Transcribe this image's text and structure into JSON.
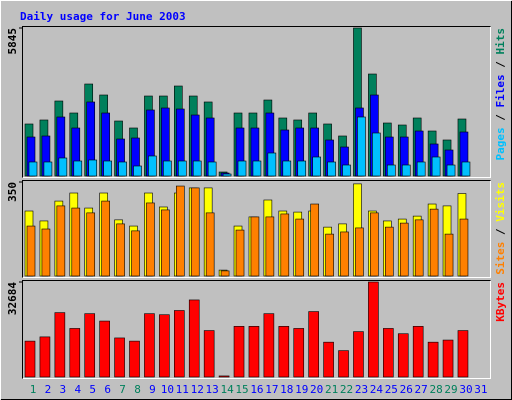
{
  "chart_data": [
    {
      "type": "bar",
      "title": "Daily usage for June 2003",
      "legend_separator": "/",
      "ylim": [
        0,
        5845
      ],
      "yticks": [
        5845
      ],
      "series": [
        {
          "name": "Pages",
          "color": "#00c0ff",
          "values": [
            553,
            553,
            711,
            592,
            632,
            592,
            553,
            395,
            790,
            592,
            592,
            592,
            553,
            79,
            592,
            592,
            908,
            592,
            592,
            750,
            553,
            434,
            2330,
            1698,
            434,
            434,
            553,
            750,
            434,
            553,
            null
          ]
        },
        {
          "name": "Files",
          "color": "#0000ff",
          "values": [
            1540,
            1580,
            2330,
            1896,
            2923,
            2488,
            1461,
            1501,
            2607,
            2686,
            2646,
            2409,
            2291,
            118,
            1896,
            1896,
            2488,
            1817,
            1896,
            1896,
            1422,
            1145,
            2686,
            3199,
            1540,
            1540,
            1777,
            1264,
            1027,
            1738,
            null
          ]
        },
        {
          "name": "Hits",
          "color": "#00805c",
          "values": [
            2054,
            2212,
            2962,
            2488,
            3633,
            3199,
            2172,
            1896,
            3159,
            3159,
            3554,
            3159,
            2923,
            158,
            2488,
            2488,
            3001,
            2291,
            2212,
            2488,
            2054,
            1580,
            5845,
            4028,
            2093,
            2014,
            2291,
            1777,
            1422,
            2251,
            null
          ]
        }
      ]
    },
    {
      "type": "bar",
      "legend_separator": "/",
      "ylim": [
        0,
        350
      ],
      "yticks": [
        350
      ],
      "series": [
        {
          "name": "Sites",
          "color": "#ff8000",
          "values": [
            186,
            175,
            261,
            253,
            235,
            279,
            194,
            168,
            272,
            246,
            335,
            328,
            235,
            19,
            171,
            220,
            220,
            231,
            212,
            268,
            156,
            164,
            179,
            235,
            182,
            197,
            209,
            249,
            156,
            212,
            null
          ]
        },
        {
          "name": "Visits",
          "color": "#ffff00",
          "values": [
            242,
            205,
            279,
            309,
            253,
            309,
            209,
            186,
            309,
            257,
            309,
            328,
            328,
            22,
            186,
            220,
            283,
            242,
            238,
            242,
            182,
            194,
            343,
            242,
            205,
            212,
            223,
            268,
            261,
            307,
            null
          ]
        }
      ]
    },
    {
      "type": "bar",
      "ylim": [
        0,
        32684
      ],
      "yticks": [
        32684
      ],
      "categories": [
        "1",
        "2",
        "3",
        "4",
        "5",
        "6",
        "7",
        "8",
        "9",
        "10",
        "11",
        "12",
        "13",
        "14",
        "15",
        "16",
        "17",
        "18",
        "19",
        "20",
        "21",
        "22",
        "23",
        "24",
        "25",
        "26",
        "27",
        "28",
        "29",
        "30",
        "31"
      ],
      "category_colors": [
        "#00805c",
        "#0000ff",
        "#0000ff",
        "#0000ff",
        "#0000ff",
        "#0000ff",
        "#00805c",
        "#00805c",
        "#0000ff",
        "#0000ff",
        "#0000ff",
        "#0000ff",
        "#0000ff",
        "#00805c",
        "#00805c",
        "#0000ff",
        "#0000ff",
        "#0000ff",
        "#0000ff",
        "#0000ff",
        "#00805c",
        "#00805c",
        "#0000ff",
        "#0000ff",
        "#0000ff",
        "#0000ff",
        "#0000ff",
        "#00805c",
        "#00805c",
        "#0000ff",
        "#0000ff"
      ],
      "series": [
        {
          "name": "KBytes",
          "color": "#ff0000",
          "values": [
            12347,
            13800,
            22152,
            16705,
            21790,
            19247,
            13436,
            12347,
            21790,
            21427,
            22879,
            26510,
            15979,
            363,
            17431,
            17431,
            21790,
            17431,
            16705,
            22515,
            11984,
            9079,
            15616,
            32684,
            16705,
            14889,
            17431,
            11984,
            12710,
            15979,
            null
          ]
        }
      ]
    }
  ]
}
